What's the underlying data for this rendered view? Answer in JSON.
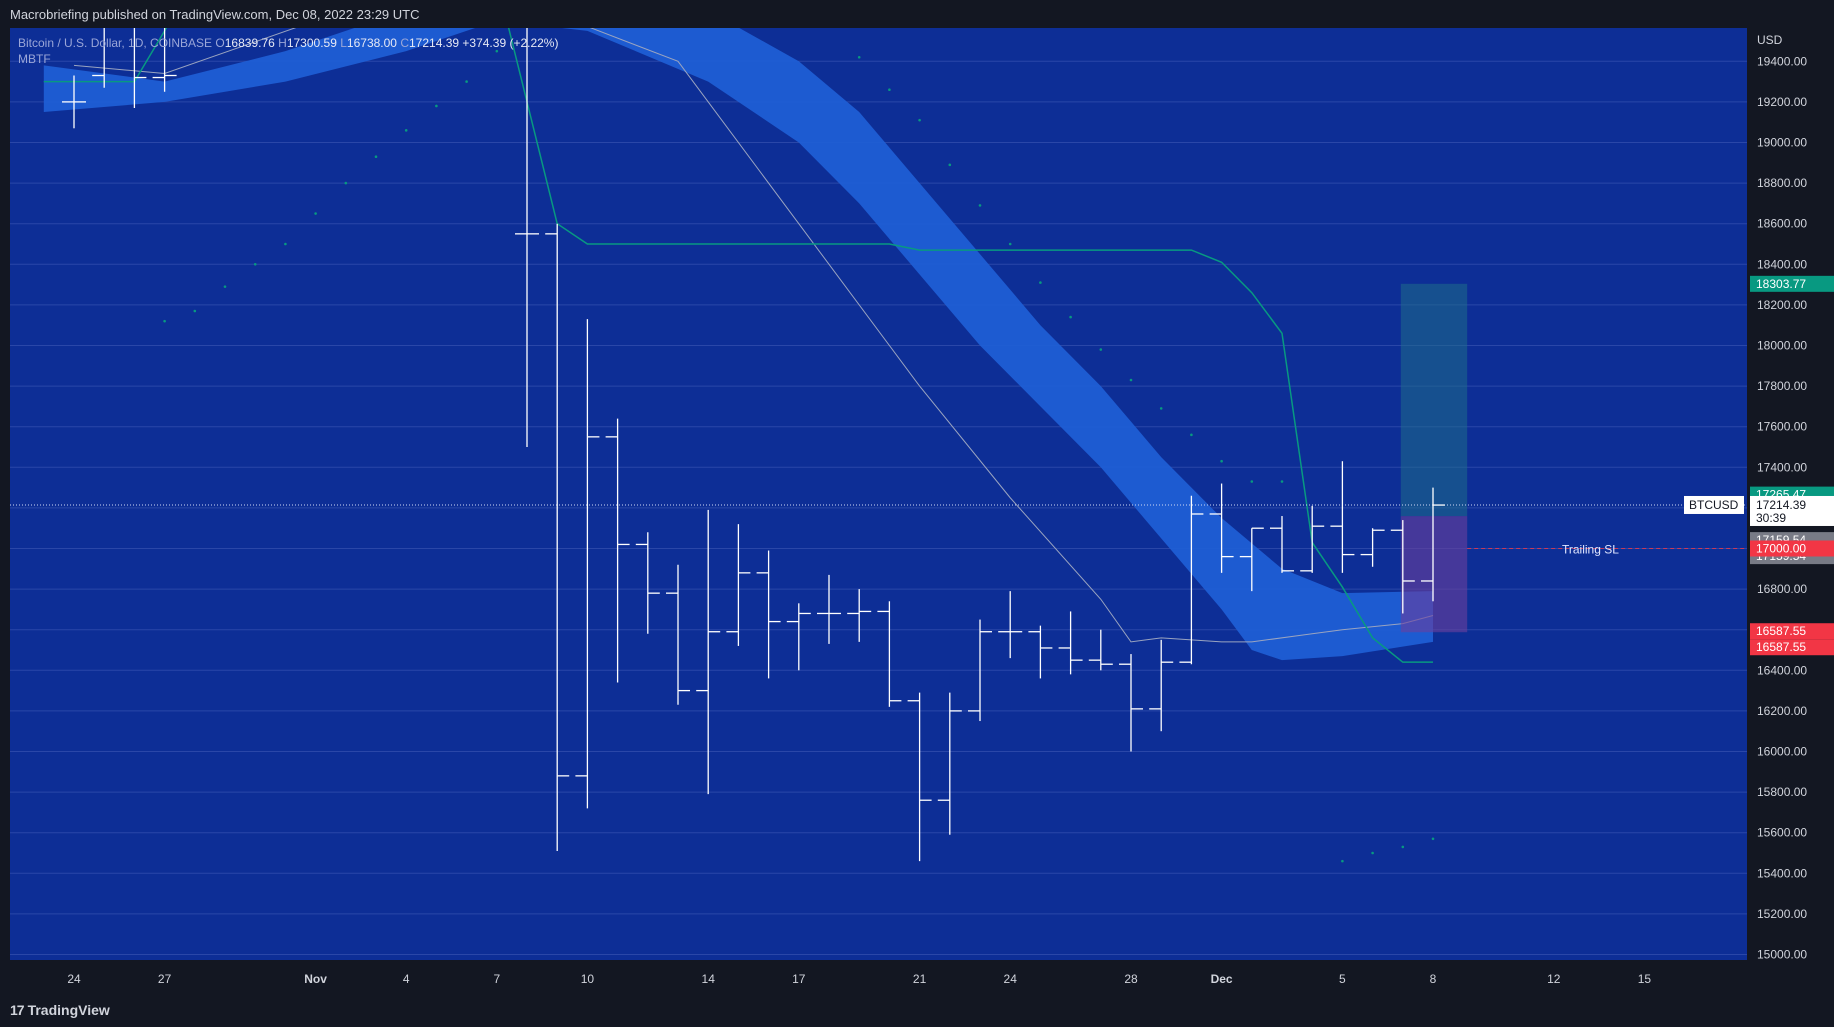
{
  "header": {
    "published": "Macrobriefing published on TradingView.com, Dec 08, 2022 23:29 UTC"
  },
  "footer": {
    "brand": "TradingView",
    "brand_icon": "tradingview-logo-icon"
  },
  "colors": {
    "background": "#0d2e96",
    "band": "#1e5fd6",
    "green": "#089981",
    "red": "#f23645",
    "text": "#d1d4dc"
  },
  "legend": {
    "symbol": "Bitcoin / U.S. Dollar, 1D, COINBASE",
    "o_label": "O",
    "o_value": "16839.76",
    "h_label": "H",
    "h_value": "17300.59",
    "l_label": "L",
    "l_value": "16738.00",
    "c_label": "C",
    "c_value": "17214.39",
    "change": "+374.39 (+2.22%)",
    "indicator": "MBTF"
  },
  "axis": {
    "currency": "USD"
  },
  "price_tags": {
    "target": "18303.77",
    "high": "17265.47",
    "symbol": "BTCUSD",
    "last": "17214.39",
    "countdown": "30:39",
    "entry_a": "17159.54",
    "entry_b": "17159.54",
    "stop_level": "17000.00",
    "stop_a": "16587.55",
    "stop_b": "16587.55",
    "trailing_label": "Trailing SL"
  },
  "chart_data": {
    "type": "ohlc",
    "ylim": [
      14900,
      19800
    ],
    "yticks": [
      "15000.00",
      "15200.00",
      "15400.00",
      "15600.00",
      "15800.00",
      "16000.00",
      "16200.00",
      "16400.00",
      "16600.00",
      "16800.00",
      "17000.00",
      "17200.00",
      "17400.00",
      "17600.00",
      "17800.00",
      "18000.00",
      "18200.00",
      "18400.00",
      "18600.00",
      "18800.00",
      "19000.00",
      "19200.00",
      "19400.00"
    ],
    "xticks": [
      "24",
      "27",
      "Nov",
      "4",
      "7",
      "10",
      "14",
      "17",
      "21",
      "24",
      "28",
      "Dec",
      "5",
      "8",
      "12",
      "15"
    ],
    "bars": [
      {
        "date": "2022-10-24",
        "o": 19200,
        "h": 19330,
        "l": 19070,
        "c": 19200
      },
      {
        "date": "2022-10-25",
        "o": 19330,
        "h": 20000,
        "l": 19270,
        "c": 20000
      },
      {
        "date": "2022-10-26",
        "o": 19600,
        "h": 20000,
        "l": 19170,
        "c": 19320
      },
      {
        "date": "2022-10-27",
        "o": 19320,
        "h": 20000,
        "l": 19250,
        "c": 19330
      },
      {
        "date": "2022-11-08",
        "o": 18550,
        "h": 19800,
        "l": 17500,
        "c": 18550
      },
      {
        "date": "2022-11-09",
        "o": 18550,
        "h": 18600,
        "l": 15510,
        "c": 15880
      },
      {
        "date": "2022-11-10",
        "o": 15880,
        "h": 18130,
        "l": 15720,
        "c": 17550
      },
      {
        "date": "2022-11-11",
        "o": 17550,
        "h": 17640,
        "l": 16340,
        "c": 17020
      },
      {
        "date": "2022-11-12",
        "o": 17020,
        "h": 17080,
        "l": 16580,
        "c": 16780
      },
      {
        "date": "2022-11-13",
        "o": 16780,
        "h": 16920,
        "l": 16230,
        "c": 16300
      },
      {
        "date": "2022-11-14",
        "o": 16300,
        "h": 17190,
        "l": 15790,
        "c": 16590
      },
      {
        "date": "2022-11-15",
        "o": 16590,
        "h": 17120,
        "l": 16520,
        "c": 16880
      },
      {
        "date": "2022-11-16",
        "o": 16880,
        "h": 16990,
        "l": 16360,
        "c": 16640
      },
      {
        "date": "2022-11-17",
        "o": 16640,
        "h": 16730,
        "l": 16400,
        "c": 16680
      },
      {
        "date": "2022-11-18",
        "o": 16680,
        "h": 16870,
        "l": 16530,
        "c": 16680
      },
      {
        "date": "2022-11-19",
        "o": 16680,
        "h": 16800,
        "l": 16540,
        "c": 16690
      },
      {
        "date": "2022-11-20",
        "o": 16690,
        "h": 16740,
        "l": 16220,
        "c": 16250
      },
      {
        "date": "2022-11-21",
        "o": 16250,
        "h": 16290,
        "l": 15460,
        "c": 15760
      },
      {
        "date": "2022-11-22",
        "o": 15760,
        "h": 16290,
        "l": 15590,
        "c": 16200
      },
      {
        "date": "2022-11-23",
        "o": 16200,
        "h": 16650,
        "l": 16150,
        "c": 16590
      },
      {
        "date": "2022-11-24",
        "o": 16590,
        "h": 16790,
        "l": 16460,
        "c": 16590
      },
      {
        "date": "2022-11-25",
        "o": 16590,
        "h": 16620,
        "l": 16360,
        "c": 16510
      },
      {
        "date": "2022-11-26",
        "o": 16510,
        "h": 16690,
        "l": 16380,
        "c": 16450
      },
      {
        "date": "2022-11-27",
        "o": 16450,
        "h": 16600,
        "l": 16400,
        "c": 16430
      },
      {
        "date": "2022-11-28",
        "o": 16430,
        "h": 16480,
        "l": 16000,
        "c": 16210
      },
      {
        "date": "2022-11-29",
        "o": 16210,
        "h": 16550,
        "l": 16100,
        "c": 16440
      },
      {
        "date": "2022-11-30",
        "o": 16440,
        "h": 17260,
        "l": 16430,
        "c": 17170
      },
      {
        "date": "2022-12-01",
        "o": 17170,
        "h": 17320,
        "l": 16880,
        "c": 16960
      },
      {
        "date": "2022-12-02",
        "o": 16960,
        "h": 17100,
        "l": 16790,
        "c": 17100
      },
      {
        "date": "2022-12-03",
        "o": 17100,
        "h": 17160,
        "l": 16880,
        "c": 16890
      },
      {
        "date": "2022-12-04",
        "o": 16890,
        "h": 17210,
        "l": 16880,
        "c": 17110
      },
      {
        "date": "2022-12-05",
        "o": 17110,
        "h": 17430,
        "l": 16880,
        "c": 16970
      },
      {
        "date": "2022-12-06",
        "o": 16970,
        "h": 17100,
        "l": 16910,
        "c": 17090
      },
      {
        "date": "2022-12-07",
        "o": 17090,
        "h": 17140,
        "l": 16680,
        "c": 16840
      },
      {
        "date": "2022-12-08",
        "o": 16840,
        "h": 17300,
        "l": 16740,
        "c": 17214
      }
    ],
    "trailing_stop_line": [
      {
        "date": "2022-10-23",
        "y": 19300
      },
      {
        "date": "2022-10-26",
        "y": 19300
      },
      {
        "date": "2022-10-28",
        "y": 19800
      },
      {
        "date": "2022-11-07",
        "y": 19800
      },
      {
        "date": "2022-11-09",
        "y": 18600
      },
      {
        "date": "2022-11-10",
        "y": 18500
      },
      {
        "date": "2022-11-20",
        "y": 18500
      },
      {
        "date": "2022-11-21",
        "y": 18470
      },
      {
        "date": "2022-11-30",
        "y": 18470
      },
      {
        "date": "2022-12-01",
        "y": 18410
      },
      {
        "date": "2022-12-02",
        "y": 18260
      },
      {
        "date": "2022-12-03",
        "y": 18060
      },
      {
        "date": "2022-12-04",
        "y": 17030
      },
      {
        "date": "2022-12-05",
        "y": 16810
      },
      {
        "date": "2022-12-06",
        "y": 16560
      },
      {
        "date": "2022-12-07",
        "y": 16440
      },
      {
        "date": "2022-12-08",
        "y": 16440
      }
    ],
    "band_upper": [
      {
        "date": "2022-10-23",
        "y": 19380
      },
      {
        "date": "2022-10-27",
        "y": 19300
      },
      {
        "date": "2022-10-31",
        "y": 19450
      },
      {
        "date": "2022-11-04",
        "y": 19650
      },
      {
        "date": "2022-11-07",
        "y": 19800
      },
      {
        "date": "2022-11-11",
        "y": 19800
      },
      {
        "date": "2022-11-14",
        "y": 19650
      },
      {
        "date": "2022-11-17",
        "y": 19400
      },
      {
        "date": "2022-11-19",
        "y": 19150
      },
      {
        "date": "2022-11-21",
        "y": 18800
      },
      {
        "date": "2022-11-23",
        "y": 18450
      },
      {
        "date": "2022-11-25",
        "y": 18100
      },
      {
        "date": "2022-11-27",
        "y": 17800
      },
      {
        "date": "2022-11-29",
        "y": 17450
      },
      {
        "date": "2022-12-01",
        "y": 17150
      },
      {
        "date": "2022-12-03",
        "y": 16900
      },
      {
        "date": "2022-12-05",
        "y": 16780
      },
      {
        "date": "2022-12-08",
        "y": 16790
      }
    ],
    "band_lower": [
      {
        "date": "2022-10-23",
        "y": 19150
      },
      {
        "date": "2022-10-27",
        "y": 19200
      },
      {
        "date": "2022-10-31",
        "y": 19300
      },
      {
        "date": "2022-11-04",
        "y": 19450
      },
      {
        "date": "2022-11-07",
        "y": 19600
      },
      {
        "date": "2022-11-10",
        "y": 19550
      },
      {
        "date": "2022-11-14",
        "y": 19300
      },
      {
        "date": "2022-11-17",
        "y": 19000
      },
      {
        "date": "2022-11-19",
        "y": 18700
      },
      {
        "date": "2022-11-21",
        "y": 18350
      },
      {
        "date": "2022-11-23",
        "y": 18000
      },
      {
        "date": "2022-11-25",
        "y": 17700
      },
      {
        "date": "2022-11-27",
        "y": 17400
      },
      {
        "date": "2022-11-29",
        "y": 17050
      },
      {
        "date": "2022-12-01",
        "y": 16700
      },
      {
        "date": "2022-12-02",
        "y": 16500
      },
      {
        "date": "2022-12-03",
        "y": 16450
      },
      {
        "date": "2022-12-05",
        "y": 16470
      },
      {
        "date": "2022-12-08",
        "y": 16540
      }
    ],
    "moving_average": [
      {
        "date": "2022-10-24",
        "y": 19380
      },
      {
        "date": "2022-10-27",
        "y": 19340
      },
      {
        "date": "2022-11-01",
        "y": 19600
      },
      {
        "date": "2022-11-06",
        "y": 19800
      },
      {
        "date": "2022-11-13",
        "y": 19400
      },
      {
        "date": "2022-11-17",
        "y": 18600
      },
      {
        "date": "2022-11-21",
        "y": 17800
      },
      {
        "date": "2022-11-24",
        "y": 17250
      },
      {
        "date": "2022-11-27",
        "y": 16750
      },
      {
        "date": "2022-11-28",
        "y": 16540
      },
      {
        "date": "2022-11-29",
        "y": 16560
      },
      {
        "date": "2022-12-01",
        "y": 16540
      },
      {
        "date": "2022-12-02",
        "y": 16540
      },
      {
        "date": "2022-12-04",
        "y": 16580
      },
      {
        "date": "2022-12-05",
        "y": 16600
      },
      {
        "date": "2022-12-07",
        "y": 16630
      },
      {
        "date": "2022-12-08",
        "y": 16670
      }
    ],
    "sar_dots": [
      {
        "date": "2022-10-27",
        "y": 18120
      },
      {
        "date": "2022-10-28",
        "y": 18170
      },
      {
        "date": "2022-10-29",
        "y": 18290
      },
      {
        "date": "2022-10-30",
        "y": 18400
      },
      {
        "date": "2022-10-31",
        "y": 18500
      },
      {
        "date": "2022-11-01",
        "y": 18650
      },
      {
        "date": "2022-11-02",
        "y": 18800
      },
      {
        "date": "2022-11-03",
        "y": 18930
      },
      {
        "date": "2022-11-04",
        "y": 19060
      },
      {
        "date": "2022-11-05",
        "y": 19180
      },
      {
        "date": "2022-11-06",
        "y": 19300
      },
      {
        "date": "2022-11-07",
        "y": 19450
      },
      {
        "date": "2022-11-19",
        "y": 19420
      },
      {
        "date": "2022-11-20",
        "y": 19260
      },
      {
        "date": "2022-11-21",
        "y": 19110
      },
      {
        "date": "2022-11-22",
        "y": 18890
      },
      {
        "date": "2022-11-23",
        "y": 18690
      },
      {
        "date": "2022-11-24",
        "y": 18500
      },
      {
        "date": "2022-11-25",
        "y": 18310
      },
      {
        "date": "2022-11-26",
        "y": 18140
      },
      {
        "date": "2022-11-27",
        "y": 17980
      },
      {
        "date": "2022-11-28",
        "y": 17830
      },
      {
        "date": "2022-11-29",
        "y": 17690
      },
      {
        "date": "2022-11-30",
        "y": 17560
      },
      {
        "date": "2022-12-01",
        "y": 17430
      },
      {
        "date": "2022-12-02",
        "y": 17330
      },
      {
        "date": "2022-12-03",
        "y": 17330
      },
      {
        "date": "2022-12-05",
        "y": 15460
      },
      {
        "date": "2022-12-06",
        "y": 15500
      },
      {
        "date": "2022-12-07",
        "y": 15530
      },
      {
        "date": "2022-12-08",
        "y": 15570
      }
    ],
    "position": {
      "entry": 17159.54,
      "target": 18303.77,
      "stop": 16587.55,
      "start_date": "2022-12-07",
      "end_date": "2022-12-09"
    },
    "last_price": 17214.39,
    "trailing_sl": 17000.0
  }
}
